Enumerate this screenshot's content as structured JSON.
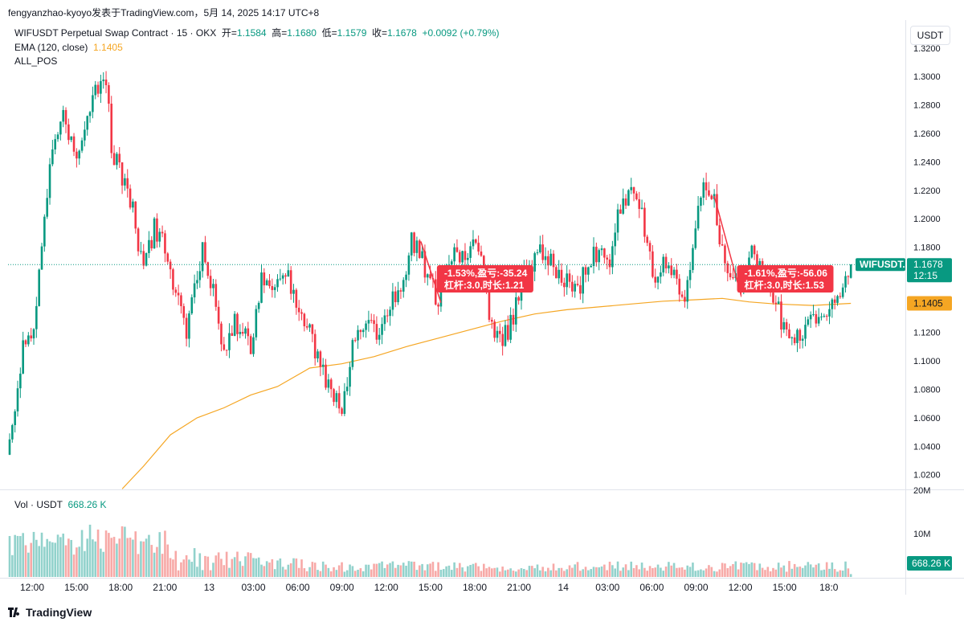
{
  "attribution": "fengyanzhao-kyoyo发表于TradingView.com，5月 14, 2025 14:17 UTC+8",
  "legend": {
    "symbol_text": "WIFUSDT Perpetual Swap Contract · 15 · OKX",
    "open_label": "开=",
    "open": "1.1584",
    "high_label": "高=",
    "high": "1.1680",
    "low_label": "低=",
    "low": "1.1579",
    "close_label": "收=",
    "close": "1.1678",
    "change": "+0.0092 (+0.79%)",
    "ema_label": "EMA (120, close)",
    "ema_value": "1.1405",
    "indicator2": "ALL_POS",
    "vol_label": "Vol · USDT",
    "vol_value": "668.26 K"
  },
  "price_axis_unit": "USDT",
  "logo_text": "TradingView",
  "colors": {
    "up": "#089981",
    "down": "#f23645",
    "ema": "#f5a623",
    "up_vol": "#92d2cc",
    "down_vol": "#f7a9a7"
  },
  "chart_data": {
    "type": "candlestick",
    "symbol": "WIFUSDT.P",
    "price_ticks": [
      "1.0200",
      "1.0400",
      "1.0600",
      "1.0800",
      "1.1000",
      "1.1200",
      "1.1400",
      "1.1600",
      "1.1800",
      "1.2000",
      "1.2200",
      "1.2400",
      "1.2600",
      "1.2800",
      "1.3000",
      "1.3200"
    ],
    "price_range": [
      1.0102,
      1.3397
    ],
    "time_ticks": [
      "12:00",
      "15:00",
      "18:00",
      "21:00",
      "13",
      "03:00",
      "06:00",
      "09:00",
      "12:00",
      "15:00",
      "18:00",
      "21:00",
      "14",
      "03:00",
      "06:00",
      "09:00",
      "12:00",
      "15:00",
      "18:0"
    ],
    "volume_ticks": [
      "20M",
      "10M"
    ],
    "volume_range": [
      0,
      20000000
    ],
    "last_price": {
      "label": "WIFUSDT.P",
      "value": "1.1678",
      "countdown": "12:15"
    },
    "ema_tag": "1.1405",
    "volume_tag": "668.26 K",
    "annotations": [
      {
        "line1": "-1.53%,盈亏:-35.24",
        "line2": "杠杆:3.0,时长:1.21",
        "x": 161,
        "price": 1.16
      },
      {
        "line1": "-1.61%,盈亏:-56.06",
        "line2": "杠杆:3.0,时长:1.53",
        "x": 273,
        "price": 1.16
      }
    ],
    "trades": [
      {
        "from_x": 153.5,
        "from_price": 1.184,
        "to_x": 161,
        "to_price": 1.141
      },
      {
        "from_x": 263,
        "from_price": 1.216,
        "to_x": 273,
        "to_price": 1.146
      }
    ],
    "anchors": [
      [
        0,
        1.04
      ],
      [
        2,
        1.068
      ],
      [
        5,
        1.11
      ],
      [
        9,
        1.12
      ],
      [
        12,
        1.18
      ],
      [
        16,
        1.25
      ],
      [
        20,
        1.28
      ],
      [
        24,
        1.24
      ],
      [
        28,
        1.26
      ],
      [
        34,
        1.3
      ],
      [
        36,
        1.3
      ],
      [
        38,
        1.25
      ],
      [
        42,
        1.23
      ],
      [
        46,
        1.21
      ],
      [
        50,
        1.16
      ],
      [
        54,
        1.195
      ],
      [
        58,
        1.18
      ],
      [
        62,
        1.15
      ],
      [
        66,
        1.12
      ],
      [
        72,
        1.18
      ],
      [
        76,
        1.15
      ],
      [
        80,
        1.1
      ],
      [
        84,
        1.13
      ],
      [
        90,
        1.11
      ],
      [
        94,
        1.16
      ],
      [
        98,
        1.15
      ],
      [
        104,
        1.16
      ],
      [
        108,
        1.14
      ],
      [
        112,
        1.12
      ],
      [
        118,
        1.085
      ],
      [
        121,
        1.075
      ],
      [
        124,
        1.068
      ],
      [
        128,
        1.11
      ],
      [
        134,
        1.13
      ],
      [
        138,
        1.12
      ],
      [
        142,
        1.14
      ],
      [
        146,
        1.15
      ],
      [
        150,
        1.185
      ],
      [
        153,
        1.18
      ],
      [
        156,
        1.16
      ],
      [
        160,
        1.142
      ],
      [
        164,
        1.175
      ],
      [
        168,
        1.17
      ],
      [
        172,
        1.18
      ],
      [
        176,
        1.18
      ],
      [
        180,
        1.12
      ],
      [
        184,
        1.115
      ],
      [
        188,
        1.13
      ],
      [
        192,
        1.16
      ],
      [
        196,
        1.17
      ],
      [
        200,
        1.18
      ],
      [
        204,
        1.16
      ],
      [
        208,
        1.155
      ],
      [
        212,
        1.15
      ],
      [
        216,
        1.17
      ],
      [
        220,
        1.175
      ],
      [
        224,
        1.17
      ],
      [
        228,
        1.21
      ],
      [
        232,
        1.22
      ],
      [
        236,
        1.2
      ],
      [
        240,
        1.16
      ],
      [
        244,
        1.17
      ],
      [
        248,
        1.16
      ],
      [
        252,
        1.14
      ],
      [
        256,
        1.2
      ],
      [
        259,
        1.22
      ],
      [
        263,
        1.213
      ],
      [
        266,
        1.175
      ],
      [
        270,
        1.16
      ],
      [
        273,
        1.148
      ],
      [
        276,
        1.175
      ],
      [
        280,
        1.17
      ],
      [
        284,
        1.15
      ],
      [
        288,
        1.13
      ],
      [
        292,
        1.115
      ],
      [
        296,
        1.12
      ],
      [
        300,
        1.13
      ],
      [
        304,
        1.135
      ],
      [
        308,
        1.14
      ],
      [
        312,
        1.165
      ],
      [
        314,
        1.168
      ]
    ],
    "ema_points": [
      [
        42,
        1.01
      ],
      [
        50,
        1.026
      ],
      [
        60,
        1.048
      ],
      [
        70,
        1.06
      ],
      [
        80,
        1.067
      ],
      [
        90,
        1.076
      ],
      [
        100,
        1.082
      ],
      [
        112,
        1.095
      ],
      [
        124,
        1.098
      ],
      [
        136,
        1.103
      ],
      [
        148,
        1.11
      ],
      [
        160,
        1.116
      ],
      [
        172,
        1.122
      ],
      [
        184,
        1.128
      ],
      [
        196,
        1.133
      ],
      [
        208,
        1.136
      ],
      [
        220,
        1.138
      ],
      [
        232,
        1.14
      ],
      [
        244,
        1.142
      ],
      [
        256,
        1.143
      ],
      [
        266,
        1.144
      ],
      [
        276,
        1.1415
      ],
      [
        286,
        1.14
      ],
      [
        300,
        1.139
      ],
      [
        314,
        1.1405
      ]
    ],
    "seed": 20250514,
    "bars_total": 315
  }
}
